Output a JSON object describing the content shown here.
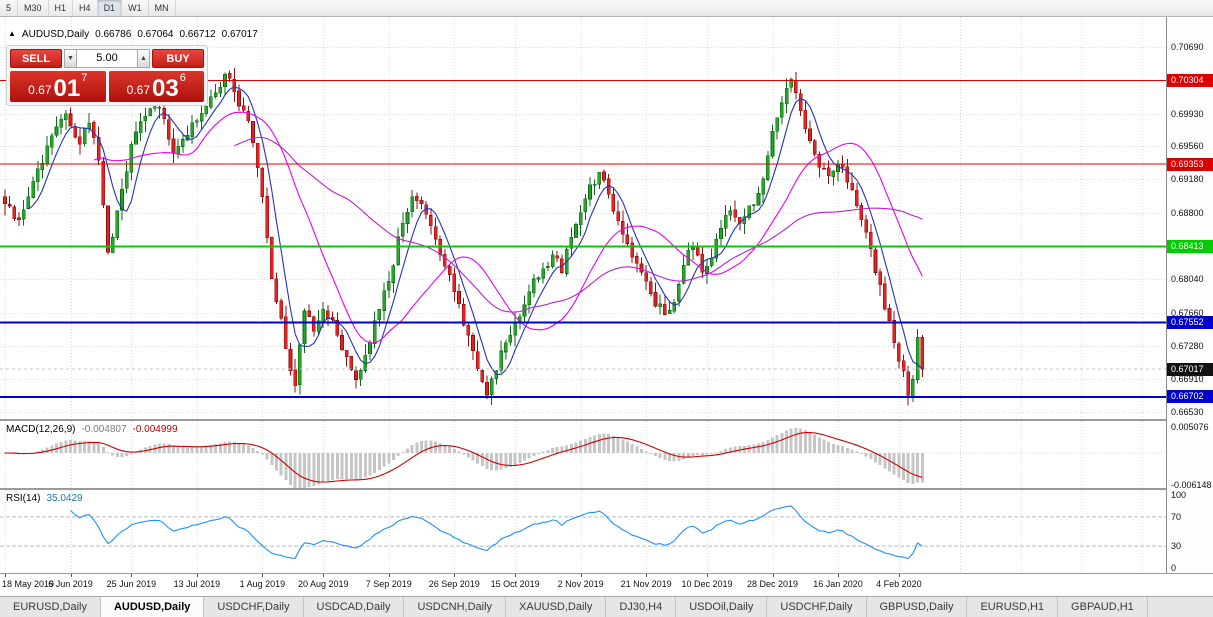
{
  "toolbar": {
    "timeframes": [
      "5",
      "M30",
      "H1",
      "H4",
      "D1",
      "W1",
      "MN"
    ],
    "active": "D1"
  },
  "chart": {
    "symbol_title": "AUDUSD,Daily",
    "marker": "▲",
    "ohlc": {
      "open": "0.66786",
      "high": "0.67064",
      "low": "0.66712",
      "close": "0.67017"
    }
  },
  "trade_panel": {
    "sell_label": "SELL",
    "buy_label": "BUY",
    "volume": "5.00",
    "spin_down": "▼",
    "spin_up": "▲",
    "sell_price": {
      "base": "0.67",
      "big": "01",
      "sup": "7"
    },
    "buy_price": {
      "base": "0.67",
      "big": "03",
      "sup": "6"
    }
  },
  "price_axis": {
    "labels": [
      {
        "text": "0.70690",
        "value": 0.7069
      },
      {
        "text": "0.69930",
        "value": 0.6993
      },
      {
        "text": "0.69560",
        "value": 0.6956
      },
      {
        "text": "0.69180",
        "value": 0.6918
      },
      {
        "text": "0.68800",
        "value": 0.688
      },
      {
        "text": "0.68040",
        "value": 0.6804
      },
      {
        "text": "0.67660",
        "value": 0.6766
      },
      {
        "text": "0.67280",
        "value": 0.6728
      },
      {
        "text": "0.66910",
        "value": 0.6691
      },
      {
        "text": "0.66530",
        "value": 0.6653
      }
    ],
    "badges": [
      {
        "text": "0.70304",
        "value": 0.70304,
        "color": "#dd0000"
      },
      {
        "text": "0.69353",
        "value": 0.69353,
        "color": "#dd0000"
      },
      {
        "text": "0.68413",
        "value": 0.68413,
        "color": "#00cc00"
      },
      {
        "text": "0.67552",
        "value": 0.67552,
        "color": "#0000cc"
      },
      {
        "text": "0.67017",
        "value": 0.67017,
        "color": "#111111"
      },
      {
        "text": "0.66702",
        "value": 0.66702,
        "color": "#0000cc"
      }
    ]
  },
  "indicators": {
    "macd": {
      "label": "MACD(12,26,9)",
      "value_main": "-0.004807",
      "value_signal": "-0.004999",
      "axis_labels": [
        {
          "text": "0.005076",
          "value": 0.005076
        },
        {
          "text": "-0.006148",
          "value": -0.006148
        }
      ]
    },
    "rsi": {
      "label": "RSI(14)",
      "value": "35.0429",
      "axis_labels": [
        {
          "text": "100",
          "value": 100
        },
        {
          "text": "70",
          "value": 70
        },
        {
          "text": "30",
          "value": 30
        },
        {
          "text": "0",
          "value": 0
        }
      ]
    }
  },
  "date_axis": {
    "labels": [
      {
        "text": "18 May 2019",
        "index": 0
      },
      {
        "text": "6 Jun 2019",
        "index": 14
      },
      {
        "text": "25 Jun 2019",
        "index": 27
      },
      {
        "text": "13 Jul 2019",
        "index": 41
      },
      {
        "text": "1 Aug 2019",
        "index": 55
      },
      {
        "text": "20 Aug 2019",
        "index": 68
      },
      {
        "text": "7 Sep 2019",
        "index": 82
      },
      {
        "text": "26 Sep 2019",
        "index": 96
      },
      {
        "text": "15 Oct 2019",
        "index": 109
      },
      {
        "text": "2 Nov 2019",
        "index": 123
      },
      {
        "text": "21 Nov 2019",
        "index": 137
      },
      {
        "text": "10 Dec 2019",
        "index": 150
      },
      {
        "text": "28 Dec 2019",
        "index": 164
      },
      {
        "text": "16 Jan 2020",
        "index": 178
      },
      {
        "text": "4 Feb 2020",
        "index": 191
      }
    ]
  },
  "tabs": [
    {
      "label": "EURUSD,Daily",
      "active": false
    },
    {
      "label": "AUDUSD,Daily",
      "active": true
    },
    {
      "label": "USDCHF,Daily",
      "active": false
    },
    {
      "label": "USDCAD,Daily",
      "active": false
    },
    {
      "label": "USDCNH,Daily",
      "active": false
    },
    {
      "label": "XAUUSD,Daily",
      "active": false
    },
    {
      "label": "DJ30,H4",
      "active": false
    },
    {
      "label": "USDOil,Daily",
      "active": false
    },
    {
      "label": "USDCHF,Daily",
      "active": false
    },
    {
      "label": "GBPUSD,Daily",
      "active": false
    },
    {
      "label": "EURUSD,H1",
      "active": false
    },
    {
      "label": "GBPAUD,H1",
      "active": false
    }
  ],
  "chart_data": {
    "type": "candlestick",
    "symbol": "AUDUSD",
    "timeframe": "Daily",
    "num_bars": 197,
    "price_range": [
      0.6645,
      0.7103
    ],
    "grid_prices": [
      0.7069,
      0.7031,
      0.6993,
      0.6956,
      0.6918,
      0.688,
      0.6842,
      0.6804,
      0.6766,
      0.6728,
      0.6691,
      0.6653
    ],
    "close_anchors": [
      [
        0,
        0.689
      ],
      [
        3,
        0.6872
      ],
      [
        7,
        0.693
      ],
      [
        11,
        0.6978
      ],
      [
        13,
        0.6993
      ],
      [
        16,
        0.6958
      ],
      [
        18,
        0.6982
      ],
      [
        20,
        0.694
      ],
      [
        22,
        0.6835
      ],
      [
        24,
        0.6882
      ],
      [
        27,
        0.6958
      ],
      [
        30,
        0.699
      ],
      [
        33,
        0.7
      ],
      [
        36,
        0.6948
      ],
      [
        39,
        0.6968
      ],
      [
        41,
        0.6985
      ],
      [
        44,
        0.7012
      ],
      [
        47,
        0.7038
      ],
      [
        49,
        0.7018
      ],
      [
        52,
        0.6985
      ],
      [
        55,
        0.6898
      ],
      [
        57,
        0.6805
      ],
      [
        59,
        0.676
      ],
      [
        61,
        0.67
      ],
      [
        62,
        0.6683
      ],
      [
        64,
        0.6768
      ],
      [
        66,
        0.6745
      ],
      [
        68,
        0.677
      ],
      [
        70,
        0.6758
      ],
      [
        73,
        0.6716
      ],
      [
        75,
        0.669
      ],
      [
        78,
        0.6732
      ],
      [
        80,
        0.677
      ],
      [
        82,
        0.6802
      ],
      [
        85,
        0.6868
      ],
      [
        87,
        0.6898
      ],
      [
        90,
        0.6878
      ],
      [
        93,
        0.6832
      ],
      [
        96,
        0.679
      ],
      [
        98,
        0.6752
      ],
      [
        101,
        0.6702
      ],
      [
        103,
        0.6672
      ],
      [
        105,
        0.67
      ],
      [
        107,
        0.6732
      ],
      [
        109,
        0.6756
      ],
      [
        112,
        0.679
      ],
      [
        115,
        0.6816
      ],
      [
        117,
        0.6832
      ],
      [
        119,
        0.6812
      ],
      [
        121,
        0.6852
      ],
      [
        123,
        0.688
      ],
      [
        125,
        0.6912
      ],
      [
        127,
        0.6926
      ],
      [
        130,
        0.6882
      ],
      [
        133,
        0.6845
      ],
      [
        136,
        0.6812
      ],
      [
        138,
        0.6788
      ],
      [
        141,
        0.6764
      ],
      [
        143,
        0.6778
      ],
      [
        145,
        0.682
      ],
      [
        147,
        0.6842
      ],
      [
        149,
        0.6812
      ],
      [
        151,
        0.6828
      ],
      [
        153,
        0.6862
      ],
      [
        155,
        0.6882
      ],
      [
        157,
        0.6868
      ],
      [
        159,
        0.6888
      ],
      [
        161,
        0.6902
      ],
      [
        163,
        0.6945
      ],
      [
        165,
        0.6988
      ],
      [
        167,
        0.7022
      ],
      [
        168,
        0.7032
      ],
      [
        170,
        0.6996
      ],
      [
        172,
        0.6962
      ],
      [
        174,
        0.6932
      ],
      [
        176,
        0.6922
      ],
      [
        178,
        0.6936
      ],
      [
        180,
        0.6915
      ],
      [
        182,
        0.6888
      ],
      [
        184,
        0.6858
      ],
      [
        186,
        0.6812
      ],
      [
        188,
        0.677
      ],
      [
        190,
        0.6732
      ],
      [
        192,
        0.67
      ],
      [
        193,
        0.6672
      ],
      [
        194,
        0.669
      ],
      [
        195,
        0.6738
      ],
      [
        196,
        0.67017
      ]
    ],
    "hlines": [
      {
        "price": 0.70304,
        "color": "#dd0000",
        "width": 1
      },
      {
        "price": 0.69353,
        "color": "#dd0000",
        "width": 1
      },
      {
        "price": 0.68413,
        "color": "#00cc00",
        "width": 2
      },
      {
        "price": 0.67552,
        "color": "#0000cc",
        "width": 2
      },
      {
        "price": 0.66702,
        "color": "#0000cc",
        "width": 2
      }
    ],
    "current_price": {
      "value": 0.67017,
      "text": "0.67017"
    },
    "moving_averages": [
      {
        "period": 6,
        "color": "#2233bb"
      },
      {
        "period": 20,
        "color": "#ee00ee"
      },
      {
        "period": 50,
        "color": "#bb22cc"
      }
    ],
    "macd": {
      "fast": 12,
      "slow": 26,
      "signal": 9,
      "range": [
        -0.0068,
        0.0062
      ],
      "histogram_color": "#c6c6c6",
      "signal_color": "#cc0000"
    },
    "rsi": {
      "period": 14,
      "range": [
        -7,
        107
      ],
      "levels": [
        70,
        30
      ],
      "line_color": "#1e90ff"
    },
    "candle_colors": {
      "up_fill": "#28a428",
      "up_border": "#0a6a14",
      "down_fill": "#e42222",
      "down_border": "#8f0f0f"
    }
  }
}
